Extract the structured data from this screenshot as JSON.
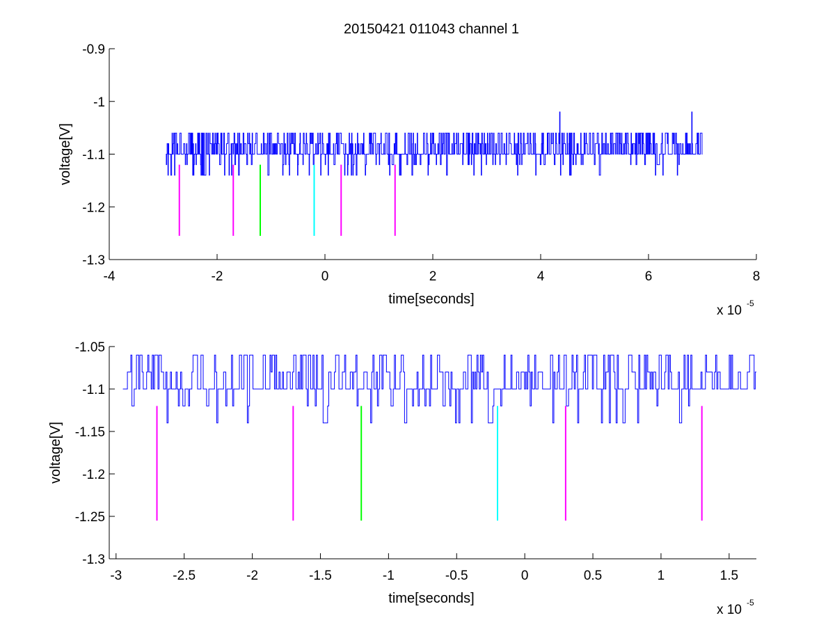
{
  "figure": {
    "title": "20150421 011043 channel 1"
  },
  "colors": {
    "trace": "#0000ff",
    "magenta": "#ff00ff",
    "green": "#00ff00",
    "cyan": "#00ffff",
    "axis": "#000000"
  },
  "chart_data": [
    {
      "type": "line",
      "title": "20150421 011043 channel 1",
      "xlabel": "time[seconds]",
      "ylabel": "voltage[V]",
      "x_multiplier_label": "x 10",
      "x_multiplier_exponent": "-5",
      "xlim": [
        -4,
        8
      ],
      "ylim": [
        -1.3,
        -0.9
      ],
      "xticks": [
        -4,
        -2,
        0,
        2,
        4,
        6,
        8
      ],
      "xtick_labels": [
        "-4",
        "-2",
        "0",
        "2",
        "4",
        "6",
        "8"
      ],
      "yticks": [
        -1.3,
        -1.2,
        -1.1,
        -1,
        -0.9
      ],
      "ytick_labels": [
        "-1.3",
        "-1.2",
        "-1.1",
        "-1",
        "-0.9"
      ],
      "grid": false,
      "series": [
        {
          "color": "#0000ff",
          "description": "noisy voltage trace sampled from x = -2.95 to 7.0 (x 10^-5 s), values mostly -1.10 with excursions to -1.06 and -1.14; spikes to -1.02 near x = 4.35 and 6.8",
          "x_start": -2.95,
          "x_end": 7.0,
          "baseline": -1.1,
          "levels": [
            -1.14,
            -1.12,
            -1.1,
            -1.08,
            -1.06,
            -1.02
          ]
        }
      ],
      "markers": [
        {
          "x": -2.7,
          "y_top": -1.12,
          "y_bottom": -1.255,
          "color": "#ff00ff"
        },
        {
          "x": -1.7,
          "y_top": -1.12,
          "y_bottom": -1.255,
          "color": "#ff00ff"
        },
        {
          "x": -1.2,
          "y_top": -1.12,
          "y_bottom": -1.255,
          "color": "#00ff00"
        },
        {
          "x": -0.2,
          "y_top": -1.12,
          "y_bottom": -1.255,
          "color": "#00ffff"
        },
        {
          "x": 0.3,
          "y_top": -1.12,
          "y_bottom": -1.255,
          "color": "#ff00ff"
        },
        {
          "x": 1.3,
          "y_top": -1.12,
          "y_bottom": -1.255,
          "color": "#ff00ff"
        }
      ]
    },
    {
      "type": "line",
      "title": "",
      "xlabel": "time[seconds]",
      "ylabel": "voltage[V]",
      "x_multiplier_label": "x 10",
      "x_multiplier_exponent": "-5",
      "xlim": [
        -3.05,
        1.7
      ],
      "ylim": [
        -1.3,
        -1.05
      ],
      "xticks": [
        -3,
        -2.5,
        -2,
        -1.5,
        -1,
        -0.5,
        0,
        0.5,
        1,
        1.5
      ],
      "xtick_labels": [
        "-3",
        "-2.5",
        "-2",
        "-1.5",
        "-1",
        "-0.5",
        "0",
        "0.5",
        "1",
        "1.5"
      ],
      "yticks": [
        -1.3,
        -1.25,
        -1.2,
        -1.15,
        -1.1,
        -1.05
      ],
      "ytick_labels": [
        "-1.3",
        "-1.25",
        "-1.2",
        "-1.15",
        "-1.1",
        "-1.05"
      ],
      "grid": false,
      "series": [
        {
          "color": "#0000ff",
          "description": "zoomed noisy voltage trace from x = -2.95 to 1.7 (x 10^-5 s), values mostly -1.10 with excursions to -1.06 and -1.14",
          "x_start": -2.95,
          "x_end": 1.7,
          "baseline": -1.1,
          "levels": [
            -1.14,
            -1.12,
            -1.1,
            -1.08,
            -1.06
          ]
        }
      ],
      "markers": [
        {
          "x": -2.7,
          "y_top": -1.12,
          "y_bottom": -1.255,
          "color": "#ff00ff"
        },
        {
          "x": -1.7,
          "y_top": -1.12,
          "y_bottom": -1.255,
          "color": "#ff00ff"
        },
        {
          "x": -1.2,
          "y_top": -1.12,
          "y_bottom": -1.255,
          "color": "#00ff00"
        },
        {
          "x": -0.2,
          "y_top": -1.12,
          "y_bottom": -1.255,
          "color": "#00ffff"
        },
        {
          "x": 0.3,
          "y_top": -1.12,
          "y_bottom": -1.255,
          "color": "#ff00ff"
        },
        {
          "x": 1.3,
          "y_top": -1.12,
          "y_bottom": -1.255,
          "color": "#ff00ff"
        }
      ]
    }
  ]
}
